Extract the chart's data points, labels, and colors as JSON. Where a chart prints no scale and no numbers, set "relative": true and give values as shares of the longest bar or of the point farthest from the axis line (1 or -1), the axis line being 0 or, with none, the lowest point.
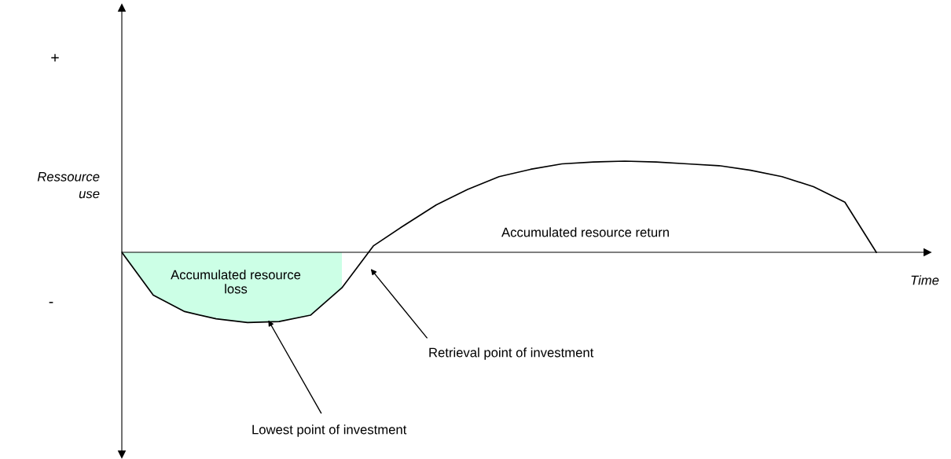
{
  "chart_data": {
    "type": "line",
    "relative": true,
    "xlabel": "Time",
    "ylabel": "Ressource use",
    "categories": [
      null,
      null,
      null,
      null,
      null,
      null,
      null,
      null,
      null,
      null,
      null,
      null,
      null,
      null,
      null,
      null,
      null,
      null,
      null,
      null,
      null,
      null,
      null,
      null,
      null
    ],
    "series": [
      {
        "type": "area",
        "color": "#ccffe6",
        "values": [
          0,
          -0.47,
          -0.65,
          -0.73,
          -0.77,
          -0.76,
          -0.69,
          -0.39,
          null,
          null,
          null,
          null,
          null,
          null,
          null,
          null,
          null,
          null,
          null,
          null,
          null,
          null,
          null,
          null,
          null
        ]
      },
      {
        "color": "#000000",
        "values": [
          0,
          -0.47,
          -0.65,
          -0.73,
          -0.77,
          -0.76,
          -0.69,
          -0.39,
          0.07,
          0.3,
          0.52,
          0.69,
          0.83,
          0.91,
          0.97,
          0.99,
          1,
          0.99,
          0.97,
          0.95,
          0.9,
          0.83,
          0.72,
          0.55,
          0
        ]
      }
    ],
    "annotations": [
      "+",
      "-",
      "Accumulated resource\nloss",
      "Accumulated resource return",
      "Retrieval point of investment",
      "Lowest point of investment"
    ],
    "legend": false
  }
}
